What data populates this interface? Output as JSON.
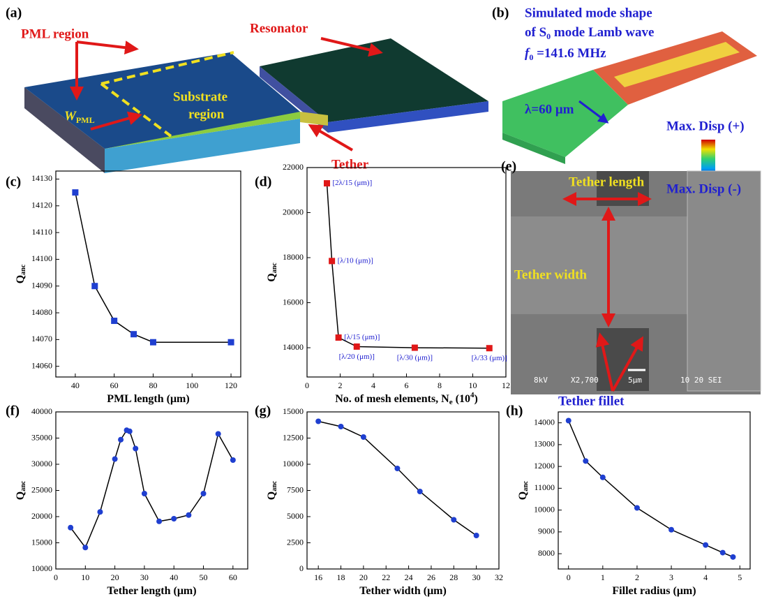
{
  "panels": {
    "a": {
      "label": "(a)",
      "pml": "PML region",
      "resonator": "Resonator",
      "substrate": "Substrate",
      "region": "region",
      "w": "W",
      "w_sub": "PML",
      "tether": "Tether"
    },
    "b": {
      "label": "(b)",
      "line1": "Simulated mode shape",
      "line2_a": "of S",
      "line2_sub": "0",
      "line2_b": " mode Lamb wave",
      "f": "f",
      "f_sub": "0",
      "f_val": " =141.6 MHz",
      "lambda": "λ=60 μm",
      "max_pos": "Max. Disp (+)",
      "max_neg": "Max. Disp (-)"
    },
    "e": {
      "label": "(e)",
      "length": "Tether length",
      "width": "Tether width",
      "fillet": "Tether fillet",
      "sem_kv": "8kV",
      "sem_mag": "X2,700",
      "sem_scale": "5μm",
      "sem_id": "10 20 SEI"
    }
  },
  "chart_data": [
    {
      "type": "line",
      "label": "(c)",
      "xlabel": "PML length (μm)",
      "ylabel": "Q",
      "ylabel_sub": "anc",
      "marker": "square",
      "color": "#1f3fd0",
      "x": [
        40,
        50,
        60,
        70,
        80,
        120
      ],
      "values": [
        14125,
        14090,
        14077,
        14072,
        14069,
        14069
      ],
      "xlim": [
        30,
        125
      ],
      "ylim": [
        14056,
        14133
      ],
      "xticks": [
        40,
        60,
        80,
        100,
        120
      ],
      "yticks": [
        14060,
        14070,
        14080,
        14090,
        14100,
        14110,
        14120,
        14130
      ]
    },
    {
      "type": "line",
      "label": "(d)",
      "xlabel": "No. of mesh elements, N",
      "xlabel_sub": "e",
      "xlabel_b": " (10",
      "xlabel_sup": "4",
      "xlabel_c": ")",
      "ylabel": "Q",
      "ylabel_sub": "anc",
      "marker": "square",
      "color": "#e01818",
      "x": [
        1.2,
        1.5,
        1.9,
        3,
        6.5,
        11
      ],
      "values": [
        21300,
        17850,
        14450,
        14050,
        14000,
        13980
      ],
      "point_labels": [
        "[2λ/15 (μm)]",
        "[λ/10 (μm)]",
        "[λ/15 (μm)]",
        "[λ/20 (μm)]",
        "[λ/30 (μm)]",
        "[λ/33 (μm)]"
      ],
      "xlim": [
        0,
        12
      ],
      "ylim": [
        12700,
        22000
      ],
      "xticks": [
        0,
        2,
        4,
        6,
        8,
        10,
        12
      ],
      "yticks": [
        14000,
        16000,
        18000,
        20000,
        22000
      ]
    },
    {
      "type": "line",
      "label": "(f)",
      "xlabel": "Tether length (μm)",
      "ylabel": "Q",
      "ylabel_sub": "anc",
      "marker": "circle",
      "color": "#1f3fd0",
      "x": [
        5,
        10,
        15,
        20,
        22,
        24,
        25,
        27,
        30,
        35,
        40,
        45,
        50,
        55,
        60
      ],
      "values": [
        17900,
        14100,
        20900,
        31000,
        34700,
        36500,
        36300,
        33000,
        24400,
        19100,
        19600,
        20300,
        24400,
        35800,
        30800
      ],
      "xlim": [
        0,
        65
      ],
      "ylim": [
        10000,
        40000
      ],
      "xticks": [
        0,
        10,
        20,
        30,
        40,
        50,
        60
      ],
      "yticks": [
        10000,
        15000,
        20000,
        25000,
        30000,
        35000,
        40000
      ]
    },
    {
      "type": "line",
      "label": "(g)",
      "xlabel": "Tether width (μm)",
      "ylabel": "Q",
      "ylabel_sub": "anc",
      "marker": "circle",
      "color": "#1f3fd0",
      "x": [
        16,
        18,
        20,
        23,
        25,
        28,
        30
      ],
      "values": [
        14100,
        13600,
        12600,
        9600,
        7400,
        4700,
        3200
      ],
      "xlim": [
        15,
        32
      ],
      "ylim": [
        0,
        15000
      ],
      "xticks": [
        16,
        18,
        20,
        22,
        24,
        26,
        28,
        30,
        32
      ],
      "yticks": [
        0,
        2500,
        5000,
        7500,
        10000,
        12500,
        15000
      ]
    },
    {
      "type": "line",
      "label": "(h)",
      "xlabel": "Fillet radius (μm)",
      "ylabel": "Q",
      "ylabel_sub": "anc",
      "marker": "circle",
      "color": "#1f3fd0",
      "x": [
        0,
        0.5,
        1,
        2,
        3,
        4,
        4.5,
        4.8
      ],
      "values": [
        14100,
        12250,
        11500,
        10100,
        9100,
        8400,
        8050,
        7850
      ],
      "xlim": [
        -0.3,
        5.3
      ],
      "ylim": [
        7300,
        14500
      ],
      "xticks": [
        0,
        1,
        2,
        3,
        4,
        5
      ],
      "yticks": [
        8000,
        9000,
        10000,
        11000,
        12000,
        13000,
        14000
      ]
    }
  ]
}
